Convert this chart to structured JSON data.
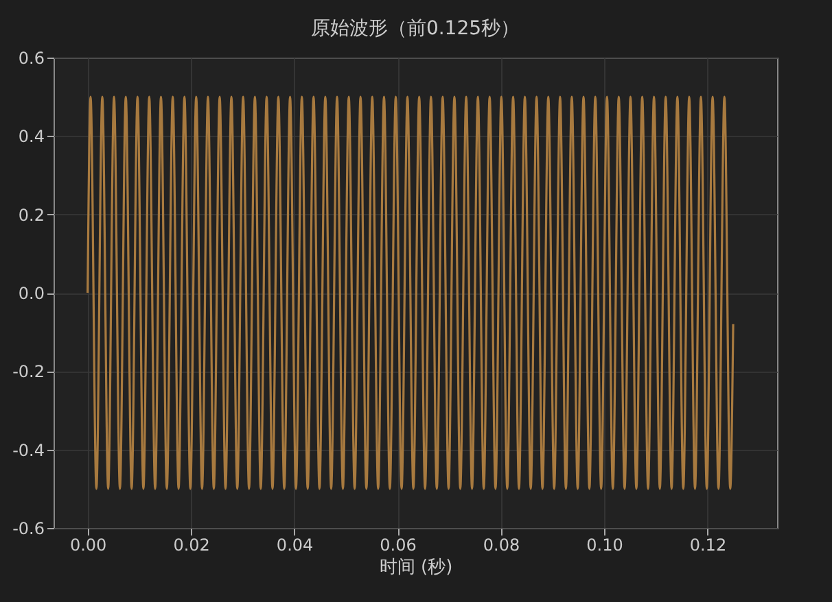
{
  "chart_data": {
    "type": "line",
    "title": "原始波形（前0.125秒）",
    "xlabel": "时间 (秒)",
    "x": [
      0,
      0.00057,
      0.0017,
      0.00284,
      0.00398,
      0.00511,
      0.00625,
      0.00739,
      0.00852,
      0.00966,
      0.0108,
      0.01193,
      0.01307,
      0.0142,
      0.01534,
      0.01648,
      0.01761,
      0.01875,
      0.01989,
      0.02102,
      0.02216,
      0.0233,
      0.02443,
      0.02557,
      0.0267,
      0.02784,
      0.02898,
      0.03011,
      0.03125,
      0.03239,
      0.03352,
      0.03466,
      0.0358,
      0.03693,
      0.03807,
      0.0392,
      0.04034,
      0.04148,
      0.04261,
      0.04375,
      0.04489,
      0.04602,
      0.04716,
      0.0483,
      0.04943,
      0.05057,
      0.0517,
      0.05284,
      0.05398,
      0.05511,
      0.05625,
      0.05739,
      0.05852,
      0.05966,
      0.0608,
      0.06193,
      0.06307,
      0.0642,
      0.06534,
      0.06648,
      0.06761,
      0.06875,
      0.06989,
      0.07102,
      0.07216,
      0.0733,
      0.07443,
      0.07557,
      0.0767,
      0.07784,
      0.07898,
      0.08011,
      0.08125,
      0.08239,
      0.08352,
      0.08466,
      0.0858,
      0.08693,
      0.08807,
      0.0892,
      0.09034,
      0.09148,
      0.09261,
      0.09375,
      0.09489,
      0.09602,
      0.09716,
      0.0983,
      0.09943,
      0.10057,
      0.1017,
      0.10284,
      0.10398,
      0.10511,
      0.10625,
      0.10739,
      0.10852,
      0.10966,
      0.1108,
      0.11193,
      0.11307,
      0.1142,
      0.11534,
      0.11648,
      0.11761,
      0.11875,
      0.11989,
      0.12102,
      0.12216,
      0.1233,
      0.12443,
      0.125
    ],
    "series": [
      {
        "color": "#a87a3f",
        "values": [
          0,
          0.5,
          -0.5,
          0.5,
          -0.5,
          0.5,
          -0.5,
          0.5,
          -0.5,
          0.5,
          -0.5,
          0.5,
          -0.5,
          0.5,
          -0.5,
          0.5,
          -0.5,
          0.5,
          -0.5,
          0.5,
          -0.5,
          0.5,
          -0.5,
          0.5,
          -0.5,
          0.5,
          -0.5,
          0.5,
          -0.5,
          0.5,
          -0.5,
          0.5,
          -0.5,
          0.5,
          -0.5,
          0.5,
          -0.5,
          0.5,
          -0.5,
          0.5,
          -0.5,
          0.5,
          -0.5,
          0.5,
          -0.5,
          0.5,
          -0.5,
          0.5,
          -0.5,
          0.5,
          -0.5,
          0.5,
          -0.5,
          0.5,
          -0.5,
          0.5,
          -0.5,
          0.5,
          -0.5,
          0.5,
          -0.5,
          0.5,
          -0.5,
          0.5,
          -0.5,
          0.5,
          -0.5,
          0.5,
          -0.5,
          0.5,
          -0.5,
          0.5,
          -0.5,
          0.5,
          -0.5,
          0.5,
          -0.5,
          0.5,
          -0.5,
          0.5,
          -0.5,
          0.5,
          -0.5,
          0.5,
          -0.5,
          0.5,
          -0.5,
          0.5,
          -0.5,
          0.5,
          -0.5,
          0.5,
          -0.5,
          0.5,
          -0.5,
          0.5,
          -0.5,
          0.5,
          -0.5,
          0.5,
          -0.5,
          0.5,
          -0.5,
          0.5,
          -0.5,
          0.5,
          -0.5,
          0.5,
          -0.5,
          0.5,
          -0.5,
          -0.08
        ]
      }
    ],
    "xlim": [
      -0.0066,
      0.1335
    ],
    "xticks": [
      {
        "value": 0,
        "label": "0.00"
      },
      0.02,
      0.04,
      0.06,
      0.08,
      {
        "value": 0.1,
        "label": "0.10"
      },
      0.12
    ],
    "ylim": [
      -0.6,
      0.6
    ],
    "yticks": [
      -0.6,
      -0.4,
      -0.2,
      {
        "value": 0,
        "label": "0.0"
      },
      0.2,
      0.4,
      0.6
    ],
    "grid": true,
    "line_style": "solid"
  }
}
